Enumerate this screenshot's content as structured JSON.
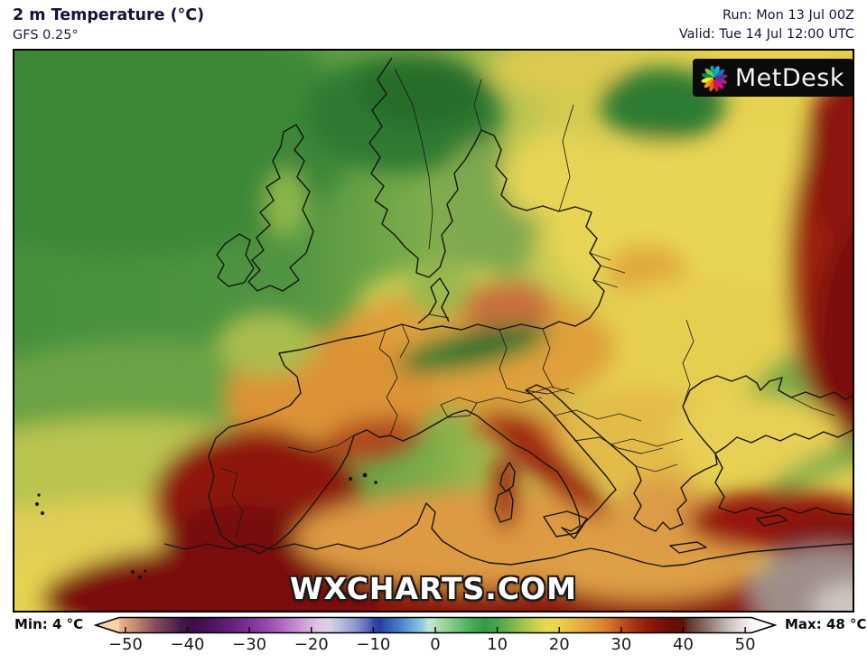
{
  "header": {
    "title": "2 m Temperature (°C)",
    "model": "GFS 0.25°",
    "run": "Run: Mon 13 Jul 00Z",
    "valid": "Valid: Tue 14 Jul 12:00 UTC"
  },
  "map": {
    "watermark": "WXCHARTS.COM",
    "logo": {
      "text": "MetDesk"
    },
    "palette": {
      "atlantic_green": "#4a9140",
      "cold_dark_green": "#2d7a32",
      "mild_yellow_green": "#a9bd4e",
      "warm_yellow": "#e6d251",
      "hot_orange": "#dd9a3c",
      "very_hot_red": "#96190e",
      "extreme_dark_red": "#760d08",
      "scorching_gray": "#9e8e8a",
      "coastline": "#151515"
    }
  },
  "colorbar": {
    "min_label": "Min: 4 °C",
    "max_label": "Max: 48 °C",
    "unit": "°C",
    "tick_labels": [
      "−50",
      "−40",
      "−30",
      "−20",
      "−10",
      "0",
      "10",
      "20",
      "30",
      "40",
      "50"
    ],
    "tick_values": [
      -50,
      -40,
      -30,
      -20,
      -10,
      0,
      10,
      20,
      30,
      40,
      50
    ],
    "range": [
      -51,
      51
    ],
    "stops": [
      {
        "t": -55,
        "c": "#f6d3a9"
      },
      {
        "t": -51,
        "c": "#e9b68c"
      },
      {
        "t": -49,
        "c": "#cf9579"
      },
      {
        "t": -47,
        "c": "#ab6d66"
      },
      {
        "t": -45,
        "c": "#85485b"
      },
      {
        "t": -43,
        "c": "#643254"
      },
      {
        "t": -41,
        "c": "#45184a"
      },
      {
        "t": -39,
        "c": "#3a0f47"
      },
      {
        "t": -37,
        "c": "#471257"
      },
      {
        "t": -35,
        "c": "#551968"
      },
      {
        "t": -33,
        "c": "#65207b"
      },
      {
        "t": -31,
        "c": "#752b8d"
      },
      {
        "t": -29,
        "c": "#87399d"
      },
      {
        "t": -27,
        "c": "#9a4cae"
      },
      {
        "t": -25,
        "c": "#ad64bd"
      },
      {
        "t": -23,
        "c": "#c083cc"
      },
      {
        "t": -21,
        "c": "#d2a4da"
      },
      {
        "t": -19,
        "c": "#e0c3e4"
      },
      {
        "t": -17,
        "c": "#d6d2e6"
      },
      {
        "t": -15,
        "c": "#b4b9da"
      },
      {
        "t": -13,
        "c": "#8f9acb"
      },
      {
        "t": -11,
        "c": "#5e6fb8"
      },
      {
        "t": -10,
        "c": "#3a4aa6"
      },
      {
        "t": -9,
        "c": "#2b3a9e"
      },
      {
        "t": -8,
        "c": "#3055b2"
      },
      {
        "t": -6,
        "c": "#4579c4"
      },
      {
        "t": -4,
        "c": "#67a3d6"
      },
      {
        "t": -2,
        "c": "#93cde2"
      },
      {
        "t": -1,
        "c": "#c0e8da"
      },
      {
        "t": 0,
        "c": "#b3e0b6"
      },
      {
        "t": 2,
        "c": "#8fd194"
      },
      {
        "t": 4,
        "c": "#69bf72"
      },
      {
        "t": 6,
        "c": "#46ab58"
      },
      {
        "t": 8,
        "c": "#339a49"
      },
      {
        "t": 10,
        "c": "#4da44b"
      },
      {
        "t": 12,
        "c": "#72b24d"
      },
      {
        "t": 14,
        "c": "#9cc24e"
      },
      {
        "t": 16,
        "c": "#c6d04f"
      },
      {
        "t": 18,
        "c": "#e4da50"
      },
      {
        "t": 20,
        "c": "#ead24b"
      },
      {
        "t": 22,
        "c": "#e7bd44"
      },
      {
        "t": 24,
        "c": "#e3a73d"
      },
      {
        "t": 26,
        "c": "#dd9136"
      },
      {
        "t": 28,
        "c": "#d4762c"
      },
      {
        "t": 30,
        "c": "#c2521f"
      },
      {
        "t": 32,
        "c": "#aa3413"
      },
      {
        "t": 34,
        "c": "#951f0d"
      },
      {
        "t": 36,
        "c": "#7f140a"
      },
      {
        "t": 38,
        "c": "#6a0e07"
      },
      {
        "t": 40,
        "c": "#5d1208"
      },
      {
        "t": 41,
        "c": "#64392f"
      },
      {
        "t": 43,
        "c": "#7f615a"
      },
      {
        "t": 45,
        "c": "#a18c86"
      },
      {
        "t": 47,
        "c": "#c3b7b2"
      },
      {
        "t": 49,
        "c": "#e2dbd7"
      },
      {
        "t": 51,
        "c": "#f6f2ef"
      },
      {
        "t": 55,
        "c": "#fbf9f7"
      }
    ]
  }
}
